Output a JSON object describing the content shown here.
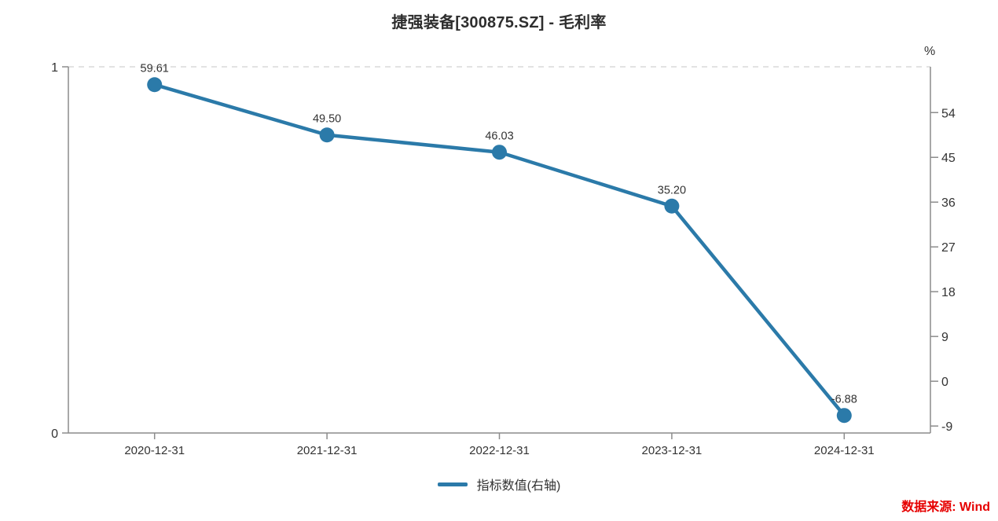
{
  "header": {
    "title": "捷强装备[300875.SZ] - 毛利率"
  },
  "legend": {
    "label": "指标数值(右轴)"
  },
  "source_note": "数据来源: Wind",
  "colors": {
    "line": "#2b7aa9",
    "axis": "#8c8c8c",
    "gridline": "#d9d9d9",
    "text": "#333333",
    "source_text": "#e60000"
  },
  "chart_data": {
    "type": "line",
    "title": "捷强装备[300875.SZ] - 毛利率",
    "categories": [
      "2020-12-31",
      "2021-12-31",
      "2022-12-31",
      "2023-12-31",
      "2024-12-31"
    ],
    "series": [
      {
        "name": "指标数值(右轴)",
        "values": [
          59.61,
          49.5,
          46.03,
          35.2,
          -6.88
        ]
      }
    ],
    "data_labels": [
      "59.61",
      "49.50",
      "46.03",
      "35.20",
      "-6.88"
    ],
    "right_axis": {
      "unit_label": "%",
      "ticks": [
        54,
        45,
        36,
        27,
        18,
        9,
        0,
        -9
      ],
      "range": [
        -10.4,
        63.2
      ]
    },
    "left_axis": {
      "ticks": [
        "1",
        "0"
      ],
      "range": [
        0,
        1
      ]
    },
    "legend_position": "bottom",
    "grid": "single dashed gridline at top of plot"
  }
}
